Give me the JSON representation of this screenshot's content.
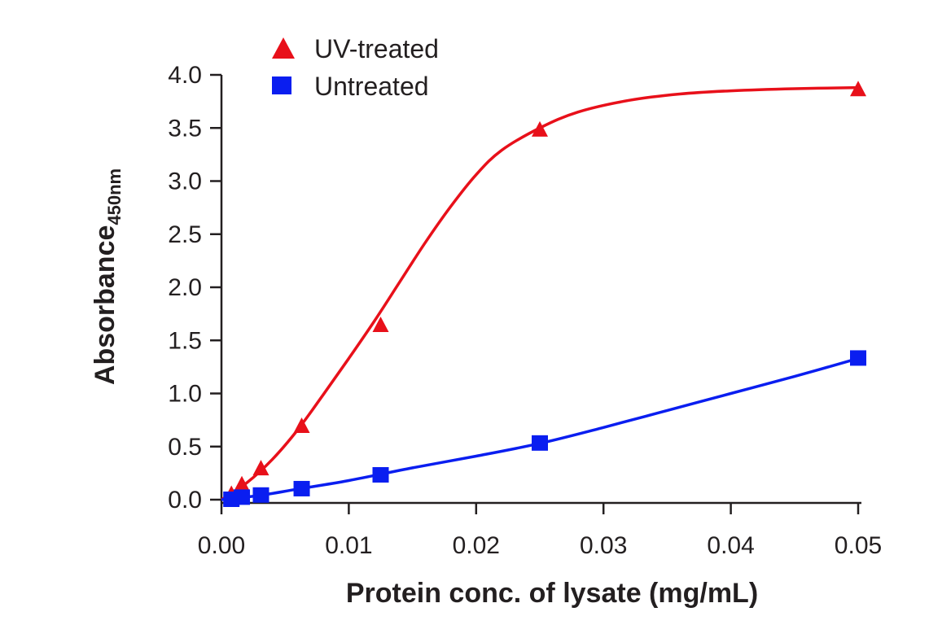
{
  "chart_data": {
    "type": "scatter",
    "xlabel": "Protein conc. of lysate (mg/mL)",
    "ylabel_main": "Absorbance",
    "ylabel_sub": "450nm",
    "xlim": [
      0,
      0.05
    ],
    "ylim": [
      0,
      4.0
    ],
    "x_ticks": [
      "0.00",
      "0.01",
      "0.02",
      "0.03",
      "0.04",
      "0.05"
    ],
    "y_ticks": [
      "0.0",
      "0.5",
      "1.0",
      "1.5",
      "2.0",
      "2.5",
      "3.0",
      "3.5",
      "4.0"
    ],
    "grid": false,
    "legend_position": "top-left",
    "series": [
      {
        "name": "UV-treated",
        "color": "#e8101a",
        "marker": "triangle",
        "x": [
          0.00078,
          0.0016,
          0.0031,
          0.0063,
          0.0125,
          0.025,
          0.05
        ],
        "y": [
          0.05,
          0.14,
          0.29,
          0.69,
          1.64,
          3.48,
          3.86
        ],
        "fit_curve": [
          [
            0.0,
            0.0
          ],
          [
            0.002,
            0.16
          ],
          [
            0.004,
            0.38
          ],
          [
            0.006,
            0.66
          ],
          [
            0.008,
            0.99
          ],
          [
            0.01,
            1.33
          ],
          [
            0.012,
            1.68
          ],
          [
            0.014,
            2.05
          ],
          [
            0.016,
            2.42
          ],
          [
            0.018,
            2.76
          ],
          [
            0.02,
            3.06
          ],
          [
            0.022,
            3.29
          ],
          [
            0.025,
            3.5
          ],
          [
            0.028,
            3.65
          ],
          [
            0.032,
            3.76
          ],
          [
            0.036,
            3.82
          ],
          [
            0.04,
            3.85
          ],
          [
            0.045,
            3.87
          ],
          [
            0.05,
            3.88
          ]
        ]
      },
      {
        "name": "Untreated",
        "color": "#0a1ef0",
        "marker": "square",
        "x": [
          0.00078,
          0.0016,
          0.0031,
          0.0063,
          0.0125,
          0.025,
          0.05
        ],
        "y": [
          0.0,
          0.02,
          0.04,
          0.1,
          0.23,
          0.53,
          1.33
        ],
        "fit_curve": [
          [
            0.0,
            0.0
          ],
          [
            0.003,
            0.04
          ],
          [
            0.006,
            0.1
          ],
          [
            0.01,
            0.18
          ],
          [
            0.015,
            0.3
          ],
          [
            0.02,
            0.41
          ],
          [
            0.025,
            0.53
          ],
          [
            0.03,
            0.68
          ],
          [
            0.035,
            0.84
          ],
          [
            0.04,
            1.0
          ],
          [
            0.045,
            1.16
          ],
          [
            0.05,
            1.33
          ]
        ]
      }
    ]
  }
}
